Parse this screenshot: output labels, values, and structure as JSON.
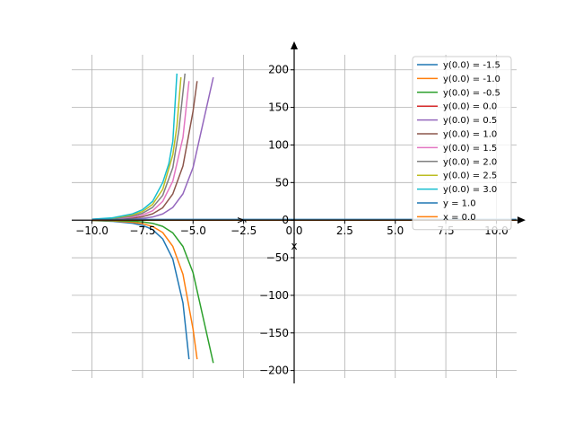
{
  "chart_data": {
    "type": "line",
    "title": "",
    "xlabel": "x",
    "ylabel": "y",
    "xlim": [
      -11,
      11
    ],
    "ylim": [
      -210,
      220
    ],
    "grid": true,
    "legend_position": "top-right",
    "xticks": [
      -10.0,
      -7.5,
      -5.0,
      -2.5,
      0.0,
      2.5,
      5.0,
      7.5,
      10.0
    ],
    "xtick_labels": [
      "−10.0",
      "−7.5",
      "−5.0",
      "−2.5",
      "0.0",
      "2.5",
      "5.0",
      "7.5",
      "10.0"
    ],
    "yticks": [
      -200,
      -150,
      -100,
      -50,
      0,
      50,
      100,
      150,
      200
    ],
    "ytick_labels": [
      "−200",
      "−150",
      "−100",
      "−50",
      "0",
      "50",
      "100",
      "150",
      "200"
    ],
    "series": [
      {
        "name": "y(0.0) = -1.5",
        "color": "#1f77b4",
        "x": [
          -10.0,
          -9.0,
          -8.0,
          -7.5,
          -7.0,
          -6.5,
          -6.0,
          -5.5,
          -5.2
        ],
        "y": [
          -0.5,
          -1.5,
          -4.1,
          -6.9,
          -12.5,
          -25.0,
          -52.0,
          -110.0,
          -185.0
        ]
      },
      {
        "name": "y(0.0) = -1.0",
        "color": "#ff7f0e",
        "x": [
          -10.0,
          -9.0,
          -8.0,
          -7.5,
          -7.0,
          -6.5,
          -6.0,
          -5.5,
          -5.0,
          -4.8
        ],
        "y": [
          -0.4,
          -1.0,
          -2.7,
          -4.6,
          -8.4,
          -16.5,
          -35.0,
          -72.0,
          -145.0,
          -185.0
        ]
      },
      {
        "name": "y(0.0) = -0.5",
        "color": "#2ca02c",
        "x": [
          -10.0,
          -9.0,
          -8.0,
          -7.5,
          -7.0,
          -6.5,
          -6.0,
          -5.5,
          -5.0,
          -4.5,
          -4.0
        ],
        "y": [
          -0.2,
          -0.5,
          -1.4,
          -2.3,
          -4.2,
          -8.3,
          -17.0,
          -35.0,
          -70.0,
          -130.0,
          -190.0
        ]
      },
      {
        "name": "y(0.0) = 0.0",
        "color": "#d62728",
        "x": [
          -10.0,
          11.0
        ],
        "y": [
          0.0,
          0.0
        ]
      },
      {
        "name": "y(0.0) = 0.5",
        "color": "#9467bd",
        "x": [
          -10.0,
          -9.0,
          -8.0,
          -7.5,
          -7.0,
          -6.5,
          -6.0,
          -5.5,
          -5.0,
          -4.5,
          -4.0
        ],
        "y": [
          0.2,
          0.5,
          1.4,
          2.3,
          4.2,
          8.3,
          17.0,
          35.0,
          70.0,
          130.0,
          190.0
        ]
      },
      {
        "name": "y(0.0) = 1.0",
        "color": "#8c564b",
        "x": [
          -10.0,
          -9.0,
          -8.0,
          -7.5,
          -7.0,
          -6.5,
          -6.0,
          -5.5,
          -5.0,
          -4.8
        ],
        "y": [
          0.4,
          1.0,
          2.7,
          4.6,
          8.4,
          16.5,
          35.0,
          72.0,
          145.0,
          185.0
        ]
      },
      {
        "name": "y(0.0) = 1.5",
        "color": "#e377c2",
        "x": [
          -10.0,
          -9.0,
          -8.0,
          -7.5,
          -7.0,
          -6.5,
          -6.0,
          -5.5,
          -5.2
        ],
        "y": [
          0.6,
          1.5,
          4.1,
          6.9,
          12.5,
          25.0,
          52.0,
          110.0,
          185.0
        ]
      },
      {
        "name": "y(0.0) = 2.0",
        "color": "#7f7f7f",
        "x": [
          -10.0,
          -9.0,
          -8.0,
          -7.5,
          -7.0,
          -6.5,
          -6.0,
          -5.7,
          -5.4
        ],
        "y": [
          0.8,
          2.0,
          5.5,
          9.2,
          17.0,
          33.0,
          70.0,
          120.0,
          195.0
        ]
      },
      {
        "name": "y(0.0) = 2.5",
        "color": "#bcbd22",
        "x": [
          -10.0,
          -9.0,
          -8.0,
          -7.5,
          -7.0,
          -6.5,
          -6.0,
          -5.8,
          -5.6
        ],
        "y": [
          1.0,
          2.5,
          6.9,
          11.5,
          21.0,
          41.0,
          87.0,
          125.0,
          190.0
        ]
      },
      {
        "name": "y(0.0) = 3.0",
        "color": "#17becf",
        "x": [
          -10.0,
          -9.0,
          -8.0,
          -7.5,
          -7.0,
          -6.5,
          -6.2,
          -6.0,
          -5.8
        ],
        "y": [
          1.2,
          3.0,
          8.3,
          13.8,
          25.0,
          50.0,
          75.0,
          105.0,
          195.0
        ]
      },
      {
        "name": "y = 1.0",
        "color": "#1f77b4",
        "x": [
          -10.0,
          11.0
        ],
        "y": [
          1.0,
          1.0
        ]
      },
      {
        "name": "x = 0.0",
        "color": "#ff7f0e",
        "x": [
          -10.0,
          11.0
        ],
        "y": [
          0.0,
          0.0
        ]
      }
    ]
  }
}
